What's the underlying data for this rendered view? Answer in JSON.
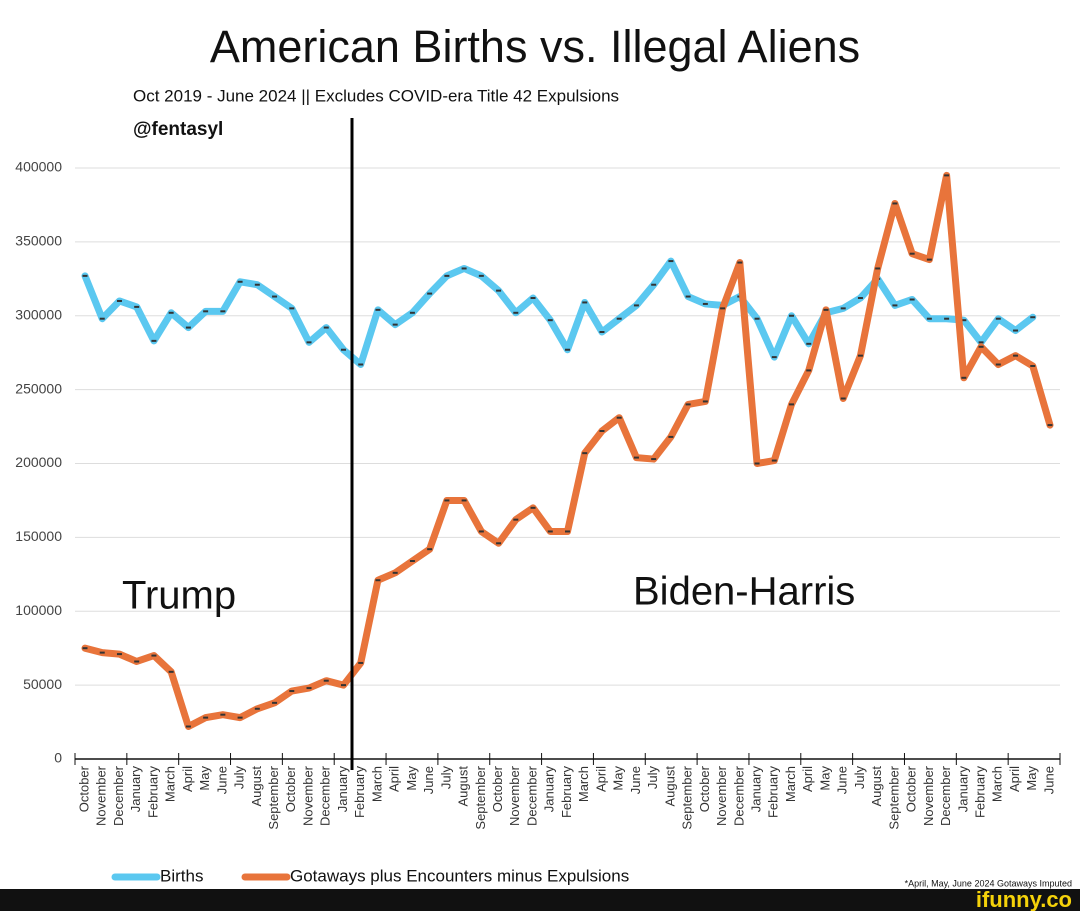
{
  "chart_data": {
    "type": "line",
    "title": "American Births vs. Illegal Aliens",
    "subtitle": "Oct 2019 - June 2024 || Excludes COVID-era Title 42 Expulsions",
    "handle": "@fentasyl",
    "annotations": [
      "Trump",
      "Biden-Harris"
    ],
    "footnote": "*April, May, June 2024 Gotaways Imputed",
    "watermark": "ifunny.co",
    "categories": [
      "October",
      "November",
      "December",
      "January",
      "February",
      "March",
      "April",
      "May",
      "June",
      "July",
      "August",
      "September",
      "October",
      "November",
      "December",
      "January",
      "February",
      "March",
      "April",
      "May",
      "June",
      "July",
      "August",
      "September",
      "October",
      "November",
      "December",
      "January",
      "February",
      "March",
      "April",
      "May",
      "June",
      "July",
      "August",
      "September",
      "October",
      "November",
      "December",
      "January",
      "February",
      "March",
      "April",
      "May",
      "June",
      "July",
      "August",
      "September",
      "October",
      "November",
      "December",
      "January",
      "February",
      "March",
      "April",
      "May",
      "June"
    ],
    "series": [
      {
        "name": "Births",
        "color": "#5bc8f0",
        "values": [
          327000,
          298000,
          310000,
          306000,
          283000,
          302000,
          292000,
          303000,
          303000,
          323000,
          321000,
          313000,
          305000,
          282000,
          292000,
          277000,
          267000,
          304000,
          294000,
          302000,
          315000,
          327000,
          332000,
          327000,
          317000,
          302000,
          312000,
          297000,
          277000,
          309000,
          289000,
          298000,
          307000,
          321000,
          337000,
          313000,
          308000,
          307000,
          313000,
          298000,
          272000,
          300000,
          281000,
          302000,
          305000,
          312000,
          325000,
          307000,
          311000,
          298000,
          298000,
          297000,
          282000,
          298000,
          290000,
          299000,
          null
        ]
      },
      {
        "name": "Gotaways plus Encounters minus Expulsions",
        "color": "#e8743b",
        "values": [
          75000,
          72000,
          71000,
          66000,
          70000,
          59000,
          22000,
          28000,
          30000,
          28000,
          34000,
          38000,
          46000,
          48000,
          53000,
          50000,
          65000,
          121000,
          126000,
          134000,
          142000,
          175000,
          175000,
          154000,
          146000,
          162000,
          170000,
          154000,
          154000,
          207000,
          222000,
          231000,
          204000,
          203000,
          218000,
          240000,
          242000,
          305000,
          336000,
          200000,
          202000,
          240000,
          263000,
          304000,
          244000,
          273000,
          332000,
          376000,
          342000,
          338000,
          395000,
          258000,
          279000,
          267000,
          273000,
          266000,
          226000
        ]
      }
    ],
    "ylim": [
      0,
      400000
    ],
    "yticks": [
      0,
      50000,
      100000,
      150000,
      200000,
      250000,
      300000,
      350000,
      400000
    ],
    "grid": true,
    "legend": "bottom"
  }
}
